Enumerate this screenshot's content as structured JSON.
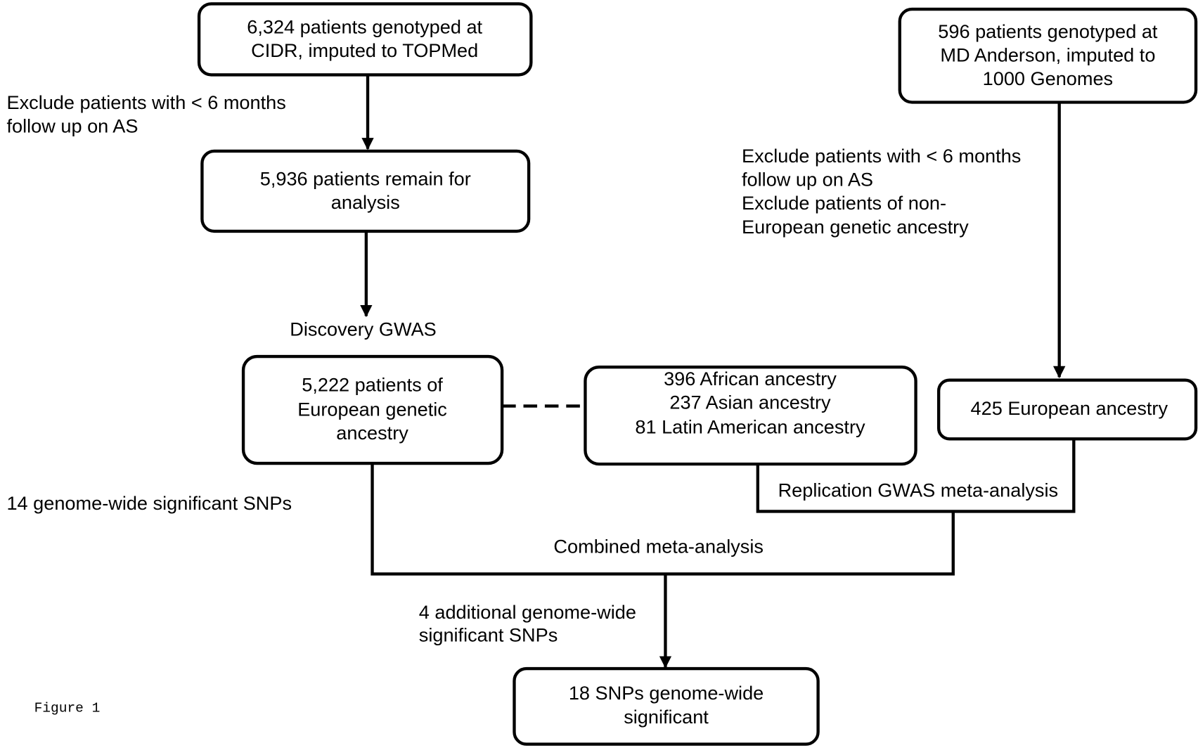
{
  "nodes": [
    {
      "lines": [
        "6,324 patients genotyped at",
        "CIDR, imputed to TOPMed"
      ]
    },
    {
      "lines": [
        "596 patients genotyped at",
        "MD Anderson, imputed to",
        "1000 Genomes"
      ]
    },
    {
      "lines": [
        "5,936 patients remain for",
        "analysis"
      ]
    },
    {
      "lines": [
        "5,222 patients of",
        "European genetic",
        "ancestry"
      ]
    },
    {
      "lines": [
        "396 African ancestry",
        "237 Asian ancestry",
        "81 Latin American ancestry"
      ]
    },
    {
      "lines": [
        "425 European ancestry"
      ]
    },
    {
      "lines": [
        "18 SNPs genome-wide",
        "significant"
      ]
    }
  ],
  "annotations": [
    {
      "lines": [
        "Exclude patients with < 6 months",
        "follow up on AS"
      ]
    },
    {
      "lines": [
        "Exclude patients with < 6 months",
        "follow up on AS",
        "Exclude patients of non-",
        "European genetic ancestry"
      ]
    },
    {
      "lines": [
        "Discovery GWAS"
      ]
    },
    {
      "lines": [
        "14 genome-wide significant SNPs"
      ]
    },
    {
      "lines": [
        "Replication GWAS meta-analysis"
      ]
    },
    {
      "lines": [
        "Combined meta-analysis"
      ]
    },
    {
      "lines": [
        "4 additional genome-wide",
        "significant SNPs"
      ]
    }
  ],
  "footer": "Figure 1"
}
